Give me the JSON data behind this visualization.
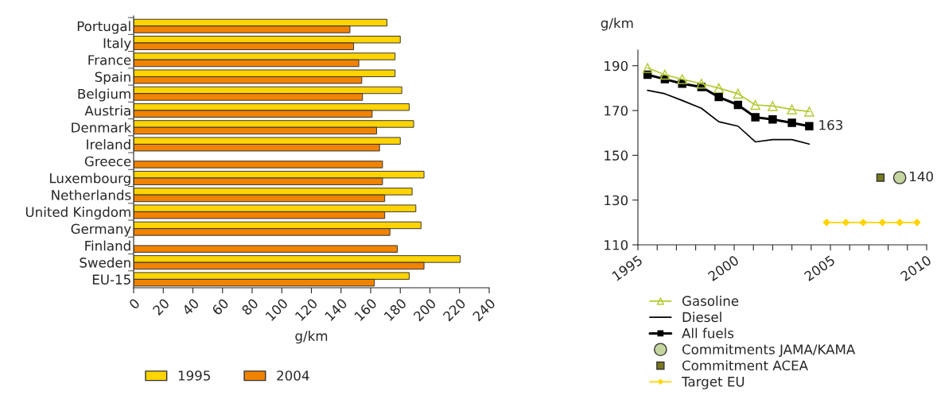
{
  "chart_data": [
    {
      "type": "bar",
      "orientation": "horizontal",
      "xlabel": "g/km",
      "categories": [
        "Portugal",
        "Italy",
        "France",
        "Spain",
        "Belgium",
        "Austria",
        "Denmark",
        "Ireland",
        "Greece",
        "Luxembourg",
        "Netherlands",
        "United Kingdom",
        "Germany",
        "Finland",
        "Sweden",
        "EU-15"
      ],
      "series": [
        {
          "name": "1995",
          "color": "#ffd400",
          "values": [
            171,
            180,
            176.5,
            176.5,
            181,
            186,
            189,
            180,
            null,
            196,
            188,
            190.5,
            194,
            null,
            220.5,
            186
          ]
        },
        {
          "name": "2004",
          "color": "#f08300",
          "values": [
            146,
            148.5,
            152,
            154,
            154.5,
            161,
            164,
            166,
            168,
            168,
            169.5,
            169.5,
            173,
            178,
            196,
            162.5
          ]
        }
      ],
      "xlim": [
        0,
        240
      ],
      "xticks": [
        0,
        20,
        40,
        60,
        80,
        100,
        120,
        140,
        160,
        180,
        200,
        220,
        240
      ],
      "grid": false,
      "legend": "bottom"
    },
    {
      "type": "line",
      "ylabel": "g/km",
      "series": [
        {
          "name": "Gasoline",
          "color": "#b5c832",
          "marker": "triangle",
          "x": [
            1995.5,
            1996.4,
            1997.3,
            1998.3,
            1999.2,
            2000.2,
            2001.1,
            2002.0,
            2003.0,
            2003.9
          ],
          "values": [
            189,
            186,
            184,
            182,
            180,
            177.5,
            172.5,
            172,
            170.5,
            169.5
          ]
        },
        {
          "name": "Diesel",
          "color": "#000000",
          "marker": "none",
          "x": [
            1995.5,
            1996.4,
            1997.3,
            1998.3,
            1999.2,
            2000.2,
            2001.1,
            2002.0,
            2003.0,
            2003.9
          ],
          "values": [
            179,
            177.5,
            174.5,
            171,
            165,
            163,
            156,
            157,
            157,
            155
          ]
        },
        {
          "name": "All fuels",
          "color": "#000000",
          "marker": "square",
          "x": [
            1995.5,
            1996.4,
            1997.3,
            1998.3,
            1999.2,
            2000.2,
            2001.1,
            2002.0,
            2003.0,
            2003.9
          ],
          "values": [
            186,
            184,
            182,
            180.5,
            176,
            172.5,
            167,
            166,
            164.5,
            163
          ],
          "value_labels": [
            null,
            null,
            null,
            null,
            null,
            null,
            null,
            null,
            null,
            "163"
          ]
        },
        {
          "name": "Commitments JAMA/KAMA",
          "type": "scatter",
          "color": "#c5d5a0",
          "marker": "circle",
          "x": [
            2008.6
          ],
          "values": [
            140
          ],
          "value_labels": [
            "140"
          ]
        },
        {
          "name": "Commitment ACEA",
          "type": "scatter",
          "color": "#787820",
          "marker": "square",
          "x": [
            2007.6
          ],
          "values": [
            140
          ]
        },
        {
          "name": "Target EU",
          "color": "#ffd400",
          "marker": "diamond",
          "x": [
            2004.8,
            2005.8,
            2006.7,
            2007.7,
            2008.6,
            2009.5
          ],
          "values": [
            120,
            120,
            120,
            120,
            120,
            120
          ]
        }
      ],
      "xlim": [
        1995,
        2010
      ],
      "xticks": [
        1995,
        {
          "value": 1996,
          "label": null
        },
        {
          "value": 1997,
          "label": null
        },
        {
          "value": 1998,
          "label": null
        },
        {
          "value": 1999,
          "label": null
        },
        2000,
        {
          "value": 2001,
          "label": null
        },
        {
          "value": 2002,
          "label": null
        },
        {
          "value": 2003,
          "label": null
        },
        {
          "value": 2004,
          "label": null
        },
        2005,
        {
          "value": 2006,
          "label": null
        },
        {
          "value": 2007,
          "label": null
        },
        {
          "value": 2008,
          "label": null
        },
        {
          "value": 2009,
          "label": null
        },
        2010
      ],
      "ylim": [
        110,
        197
      ],
      "yticks": [
        110,
        130,
        150,
        170,
        190
      ],
      "grid": false,
      "legend": "bottom"
    }
  ]
}
